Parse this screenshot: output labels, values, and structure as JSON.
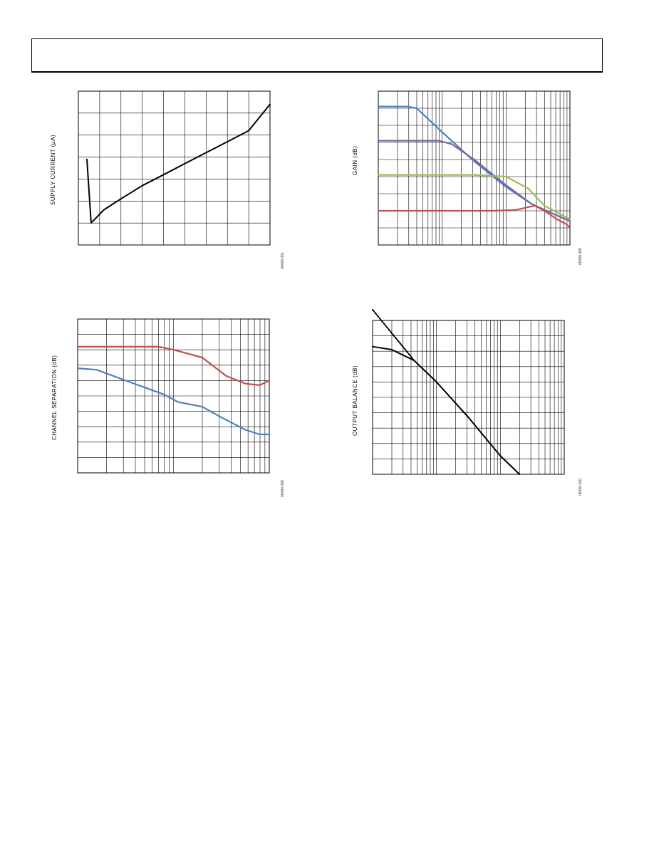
{
  "chart_data": [
    {
      "type": "line",
      "ylabel": "SUPPLY CURRENT (µA)",
      "figure_id": "09490-351",
      "x_axis": {
        "scale": "linear",
        "range": [
          0,
          9
        ],
        "divisions": 9
      },
      "y_axis": {
        "scale": "linear",
        "range": [
          0,
          7
        ],
        "divisions": 7
      },
      "grid": true,
      "series": [
        {
          "color": "#000000",
          "points": [
            [
              0.4,
              3.9
            ],
            [
              0.6,
              1.0
            ],
            [
              1.2,
              1.6
            ],
            [
              2,
              2.1
            ],
            [
              3,
              2.7
            ],
            [
              4,
              3.2
            ],
            [
              5,
              3.7
            ],
            [
              6,
              4.2
            ],
            [
              7,
              4.7
            ],
            [
              8,
              5.2
            ],
            [
              9,
              6.4
            ]
          ]
        }
      ]
    },
    {
      "type": "line",
      "ylabel": "GAIN (dB)",
      "figure_id": "09490-359",
      "x_axis": {
        "scale": "log",
        "decades": 3
      },
      "y_axis": {
        "scale": "linear",
        "range": [
          0,
          9
        ],
        "divisions": 9
      },
      "grid": true,
      "series": [
        {
          "color": "#4f81bd",
          "points": [
            [
              0,
              8.1
            ],
            [
              0.45,
              8.1
            ],
            [
              0.6,
              8.0
            ],
            [
              1.0,
              6.6
            ],
            [
              1.5,
              4.9
            ],
            [
              2.0,
              3.4
            ],
            [
              2.4,
              2.4
            ],
            [
              2.75,
              1.8
            ],
            [
              3,
              1.4
            ]
          ]
        },
        {
          "color": "#8064a2",
          "points": [
            [
              0,
              6.1
            ],
            [
              0.95,
              6.1
            ],
            [
              1.15,
              5.9
            ],
            [
              1.5,
              5.0
            ],
            [
              2.0,
              3.5
            ],
            [
              2.4,
              2.4
            ],
            [
              2.75,
              1.8
            ],
            [
              3,
              1.4
            ]
          ]
        },
        {
          "color": "#9bbb59",
          "points": [
            [
              0,
              4.1
            ],
            [
              1.5,
              4.1
            ],
            [
              2.0,
              4.0
            ],
            [
              2.35,
              3.3
            ],
            [
              2.6,
              2.3
            ],
            [
              2.8,
              1.9
            ],
            [
              3,
              1.5
            ]
          ]
        },
        {
          "color": "#c0504d",
          "points": [
            [
              0,
              2.0
            ],
            [
              1.8,
              2.0
            ],
            [
              2.15,
              2.05
            ],
            [
              2.45,
              2.3
            ],
            [
              2.6,
              2.0
            ],
            [
              2.8,
              1.5
            ],
            [
              2.95,
              1.2
            ],
            [
              3,
              1.0
            ]
          ]
        }
      ]
    },
    {
      "type": "line",
      "ylabel": "CHANNEL SEPARATION (dB)",
      "figure_id": "09490-358",
      "x_axis": {
        "scale": "log",
        "decades": 2
      },
      "y_axis": {
        "scale": "linear",
        "range": [
          0,
          10
        ],
        "divisions": 10
      },
      "grid": true,
      "series": [
        {
          "color": "#c0504d",
          "points": [
            [
              0,
              8.2
            ],
            [
              0.85,
              8.2
            ],
            [
              1.0,
              8.0
            ],
            [
              1.3,
              7.5
            ],
            [
              1.55,
              6.3
            ],
            [
              1.75,
              5.8
            ],
            [
              1.9,
              5.7
            ],
            [
              2,
              6.0
            ]
          ]
        },
        {
          "color": "#4f81bd",
          "points": [
            [
              0,
              6.8
            ],
            [
              0.2,
              6.7
            ],
            [
              0.5,
              6.0
            ],
            [
              0.9,
              5.1
            ],
            [
              1.05,
              4.6
            ],
            [
              1.3,
              4.3
            ],
            [
              1.5,
              3.6
            ],
            [
              1.75,
              2.8
            ],
            [
              1.9,
              2.5
            ],
            [
              2,
              2.5
            ]
          ]
        }
      ]
    },
    {
      "type": "line",
      "ylabel": "OUTPUT BALANCE (dB)",
      "figure_id": "09490-360",
      "x_axis": {
        "scale": "log",
        "decades": 3
      },
      "y_axis": {
        "scale": "linear",
        "range": [
          0,
          10
        ],
        "divisions": 10
      },
      "grid": true,
      "series": [
        {
          "color": "#000000",
          "points": [
            [
              0,
              8.3
            ],
            [
              0.3,
              8.1
            ],
            [
              0.65,
              7.4
            ],
            [
              1.0,
              6.0
            ],
            [
              1.5,
              3.7
            ],
            [
              2.0,
              1.2
            ],
            [
              2.3,
              0
            ]
          ]
        },
        {
          "color": "#000000",
          "dashed": true,
          "points": [
            [
              0,
              10.7
            ],
            [
              0.65,
              7.4
            ]
          ]
        }
      ]
    }
  ]
}
